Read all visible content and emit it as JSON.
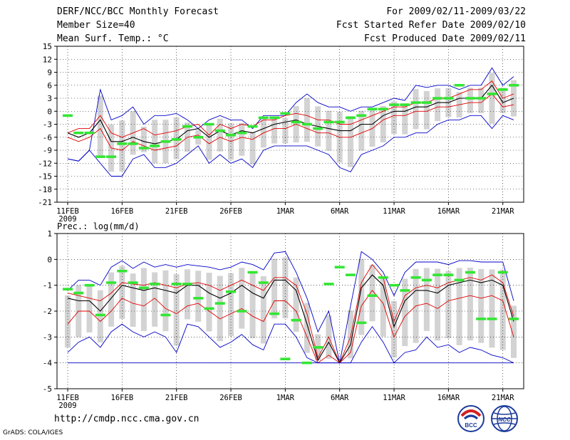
{
  "header": {
    "title": "DERF/NCC/BCC Monthly Forecast",
    "member_size": "Member Size=40",
    "variable": "Mean Surf. Temp.: °C",
    "forecast_period": "For 2009/02/11-2009/03/22",
    "fcst_started": "Fcst Started Refer Date 2009/02/10",
    "fcst_produced": "Fcst Produced Date 2009/02/11"
  },
  "footer": {
    "url": "http://cmdp.ncc.cma.gov.cn",
    "grads_credit": "GrADS: COLA/IGES",
    "logo_bcc_text": "BCC",
    "logo_ncc_text": "NCC"
  },
  "colors": {
    "box": "#d3d3d3",
    "median": "#000000",
    "quartile": "#e00000",
    "extreme": "#0000c8",
    "marker": "#33e633",
    "grid": "#000000"
  },
  "chart_data": [
    {
      "type": "line",
      "ylabel": "Mean Surf. Temp.: °C",
      "ylim": [
        -21,
        15
      ],
      "yticks": [
        15,
        12,
        9,
        6,
        3,
        0,
        -3,
        -6,
        -9,
        -12,
        -15,
        -18,
        -21
      ],
      "xticks": [
        "11FEB",
        "16FEB",
        "21FEB",
        "26FEB",
        "1MAR",
        "6MAR",
        "11MAR",
        "16MAR",
        "21MAR"
      ],
      "xtick_days": [
        1,
        6,
        11,
        16,
        21,
        26,
        31,
        36,
        41
      ],
      "year_label": "2009",
      "x_range": [
        0,
        40
      ],
      "days": [
        1,
        2,
        3,
        4,
        5,
        6,
        7,
        8,
        9,
        10,
        11,
        12,
        13,
        14,
        15,
        16,
        17,
        18,
        19,
        20,
        21,
        22,
        23,
        24,
        25,
        26,
        27,
        28,
        29,
        30,
        31,
        32,
        33,
        34,
        35,
        36,
        37,
        38,
        39,
        40,
        41,
        42
      ],
      "series": [
        {
          "name": "max",
          "values": [
            -11,
            -11.5,
            -9,
            5,
            -2,
            -1,
            1,
            -3,
            -1,
            -1,
            -0.5,
            -2,
            -4,
            -2,
            -1,
            -2,
            -2,
            -4,
            -1,
            -1,
            -1,
            2,
            4,
            2,
            1,
            1,
            0,
            1,
            1,
            2,
            3,
            2.5,
            6,
            5.5,
            6,
            6,
            5,
            6,
            6,
            10,
            6,
            8
          ]
        },
        {
          "name": "q3",
          "values": [
            -5,
            -4,
            -4,
            -1,
            -5,
            -6,
            -5,
            -4,
            -5.5,
            -5,
            -4.5,
            -3.5,
            -3,
            -5.5,
            -3,
            -4,
            -3,
            -3.5,
            -2,
            -2,
            -1,
            -0.5,
            -1,
            -2,
            -2,
            -3,
            -3,
            -2,
            -1,
            0,
            1,
            1,
            2,
            2,
            3,
            3,
            4,
            5,
            5,
            7,
            3,
            4
          ]
        },
        {
          "name": "median",
          "values": [
            -5,
            -6,
            -5,
            -2,
            -7,
            -7,
            -6,
            -7,
            -7.5,
            -7,
            -6.5,
            -4.5,
            -4,
            -6,
            -4.5,
            -5.5,
            -4.5,
            -5,
            -4,
            -3,
            -2.5,
            -2,
            -3,
            -3.5,
            -4,
            -4.5,
            -4.5,
            -3,
            -3,
            -1,
            0,
            0,
            1,
            1,
            2,
            2,
            3,
            3,
            3,
            6,
            2,
            3
          ]
        },
        {
          "name": "q1",
          "values": [
            -6,
            -7,
            -6,
            -4,
            -8.5,
            -9,
            -7,
            -8,
            -9,
            -8.5,
            -8,
            -6,
            -5.5,
            -7.5,
            -6,
            -7,
            -6,
            -6.5,
            -5,
            -4,
            -4,
            -3,
            -4,
            -5,
            -5,
            -6,
            -6,
            -5,
            -4,
            -2,
            -1,
            -1,
            0,
            0,
            1,
            1,
            1.5,
            2,
            2,
            4,
            1,
            1.5
          ]
        },
        {
          "name": "min",
          "values": [
            -11,
            -11.5,
            -9,
            -12,
            -15,
            -15,
            -11,
            -10,
            -13,
            -13,
            -12,
            -10,
            -8,
            -12,
            -10,
            -12,
            -11,
            -13,
            -9,
            -8,
            -8,
            -8,
            -8,
            -9,
            -10,
            -13,
            -14,
            -10,
            -9,
            -8,
            -6,
            -6,
            -5,
            -5,
            -3,
            -2,
            -2,
            -1,
            -1,
            -4,
            -1,
            -2
          ]
        },
        {
          "name": "marker",
          "values": [
            -1,
            -5,
            -5,
            -10.5,
            -10.5,
            -7.5,
            -7.5,
            -8.5,
            -8,
            -7,
            -6.5,
            -3.5,
            -6,
            -3,
            -4.5,
            -5.5,
            -5,
            -3.5,
            -1.5,
            -1.5,
            -0.5,
            -2.5,
            -3,
            -4,
            -2.5,
            -2.5,
            -1.5,
            -1,
            0.5,
            0.5,
            1.5,
            1.5,
            2,
            2,
            3,
            3,
            6,
            3,
            3,
            4,
            5,
            6
          ]
        }
      ]
    },
    {
      "type": "line",
      "ylabel": "Prec.: log(mm/d)",
      "ylim": [
        -5,
        1
      ],
      "yticks": [
        1,
        0,
        -1,
        -2,
        -3,
        -4,
        -5
      ],
      "xticks": [
        "11FEB",
        "16FEB",
        "21FEB",
        "26FEB",
        "1MAR",
        "6MAR",
        "11MAR",
        "16MAR",
        "21MAR"
      ],
      "xtick_days": [
        1,
        6,
        11,
        16,
        21,
        26,
        31,
        36,
        41
      ],
      "year_label": "2009",
      "x_range": [
        0,
        40
      ],
      "days": [
        1,
        2,
        3,
        4,
        5,
        6,
        7,
        8,
        9,
        10,
        11,
        12,
        13,
        14,
        15,
        16,
        17,
        18,
        19,
        20,
        21,
        22,
        23,
        24,
        25,
        26,
        27,
        28,
        29,
        30,
        31,
        32,
        33,
        34,
        35,
        36,
        37,
        38,
        39,
        40,
        41,
        42
      ],
      "series": [
        {
          "name": "max",
          "values": [
            -1.2,
            -0.8,
            -0.8,
            -1.0,
            -0.3,
            -0.05,
            -0.35,
            -0.1,
            -0.3,
            -0.2,
            -0.3,
            -0.2,
            -0.25,
            -0.3,
            -0.4,
            -0.3,
            -0.1,
            -0.2,
            -0.4,
            0.25,
            0.3,
            -0.5,
            -1.5,
            -2.8,
            -2.0,
            -4.0,
            -1.8,
            0.3,
            0.0,
            -0.5,
            -1.4,
            -0.5,
            -0.1,
            -0.1,
            -0.1,
            -0.2,
            -0.05,
            -0.05,
            -0.1,
            -0.1,
            -0.1,
            -1.6
          ]
        },
        {
          "name": "q3",
          "values": [
            -1.3,
            -1.4,
            -1.5,
            -1.6,
            -1.3,
            -0.9,
            -0.95,
            -1.0,
            -0.9,
            -1.0,
            -1.1,
            -0.95,
            -0.9,
            -1.0,
            -1.2,
            -1.0,
            -0.8,
            -1.0,
            -1.2,
            -0.7,
            -0.7,
            -1.0,
            -2.1,
            -3.8,
            -3.0,
            -4.0,
            -3.0,
            -0.9,
            -0.2,
            -0.7,
            -2.4,
            -1.4,
            -1.1,
            -1.0,
            -1.1,
            -0.9,
            -0.8,
            -0.7,
            -0.8,
            -0.6,
            -0.9,
            -2.2
          ]
        },
        {
          "name": "median",
          "values": [
            -1.5,
            -1.6,
            -1.6,
            -2.0,
            -1.5,
            -1.0,
            -1.1,
            -1.2,
            -1.1,
            -1.2,
            -1.3,
            -1.0,
            -1.0,
            -1.3,
            -1.5,
            -1.3,
            -1.0,
            -1.3,
            -1.5,
            -0.8,
            -0.8,
            -1.2,
            -2.5,
            -3.9,
            -3.2,
            -4.0,
            -3.3,
            -1.1,
            -0.6,
            -1.0,
            -2.6,
            -1.6,
            -1.2,
            -1.2,
            -1.3,
            -1.0,
            -0.9,
            -0.8,
            -0.9,
            -0.8,
            -1.0,
            -2.4
          ]
        },
        {
          "name": "q1",
          "values": [
            -2.5,
            -2.0,
            -2.0,
            -2.4,
            -2.0,
            -1.5,
            -1.7,
            -1.8,
            -1.5,
            -1.9,
            -2.1,
            -1.8,
            -1.7,
            -2.0,
            -2.3,
            -2.1,
            -1.9,
            -2.2,
            -2.4,
            -1.6,
            -1.6,
            -2.0,
            -3.0,
            -4.0,
            -3.7,
            -4.0,
            -3.6,
            -1.8,
            -1.2,
            -1.7,
            -3.0,
            -2.2,
            -1.8,
            -1.7,
            -1.9,
            -1.6,
            -1.5,
            -1.4,
            -1.5,
            -1.4,
            -1.6,
            -3.0
          ]
        },
        {
          "name": "min",
          "values": [
            -3.6,
            -3.2,
            -3.0,
            -3.4,
            -2.8,
            -2.5,
            -2.8,
            -3.0,
            -2.8,
            -3.0,
            -3.6,
            -2.5,
            -2.6,
            -3.0,
            -3.4,
            -3.2,
            -2.9,
            -3.3,
            -3.5,
            -2.5,
            -2.5,
            -3.0,
            -3.8,
            -4.0,
            -4.0,
            -4.0,
            -4.0,
            -3.2,
            -2.6,
            -3.2,
            -4.0,
            -3.6,
            -3.5,
            -3.0,
            -3.4,
            -3.3,
            -3.6,
            -3.4,
            -3.5,
            -3.7,
            -3.8,
            -4.0
          ]
        },
        {
          "name": "bottom",
          "values": [
            -4,
            -4,
            -4,
            -4,
            -4,
            -4,
            -4,
            -4,
            -4,
            -4,
            -4,
            -4,
            -4,
            -4,
            -4,
            -4,
            -4,
            -4,
            -4,
            -4,
            -4,
            -4,
            -4,
            -4,
            -4,
            -4,
            -4,
            -4,
            -4,
            -4,
            -4,
            -4,
            -4,
            -4,
            -4,
            -4,
            -4,
            -4,
            -4,
            -4,
            -4,
            -4
          ]
        },
        {
          "name": "marker",
          "values": [
            -1.15,
            -1.3,
            -1.0,
            -2.15,
            -0.9,
            -0.45,
            -0.9,
            -1.1,
            -0.95,
            -2.15,
            -0.95,
            -0.95,
            -1.5,
            -1.9,
            -1.7,
            -1.25,
            -2.0,
            -0.5,
            -0.9,
            -2.1,
            -3.85,
            -2.35,
            -4.0,
            -3.4,
            -0.95,
            -0.3,
            -0.6,
            -2.45,
            -1.4,
            -0.7,
            -1.0,
            -1.2,
            -0.7,
            -0.8,
            -0.6,
            -0.6,
            -0.8,
            -0.5,
            -2.3,
            -2.3,
            -0.5,
            -2.3
          ]
        }
      ]
    }
  ]
}
